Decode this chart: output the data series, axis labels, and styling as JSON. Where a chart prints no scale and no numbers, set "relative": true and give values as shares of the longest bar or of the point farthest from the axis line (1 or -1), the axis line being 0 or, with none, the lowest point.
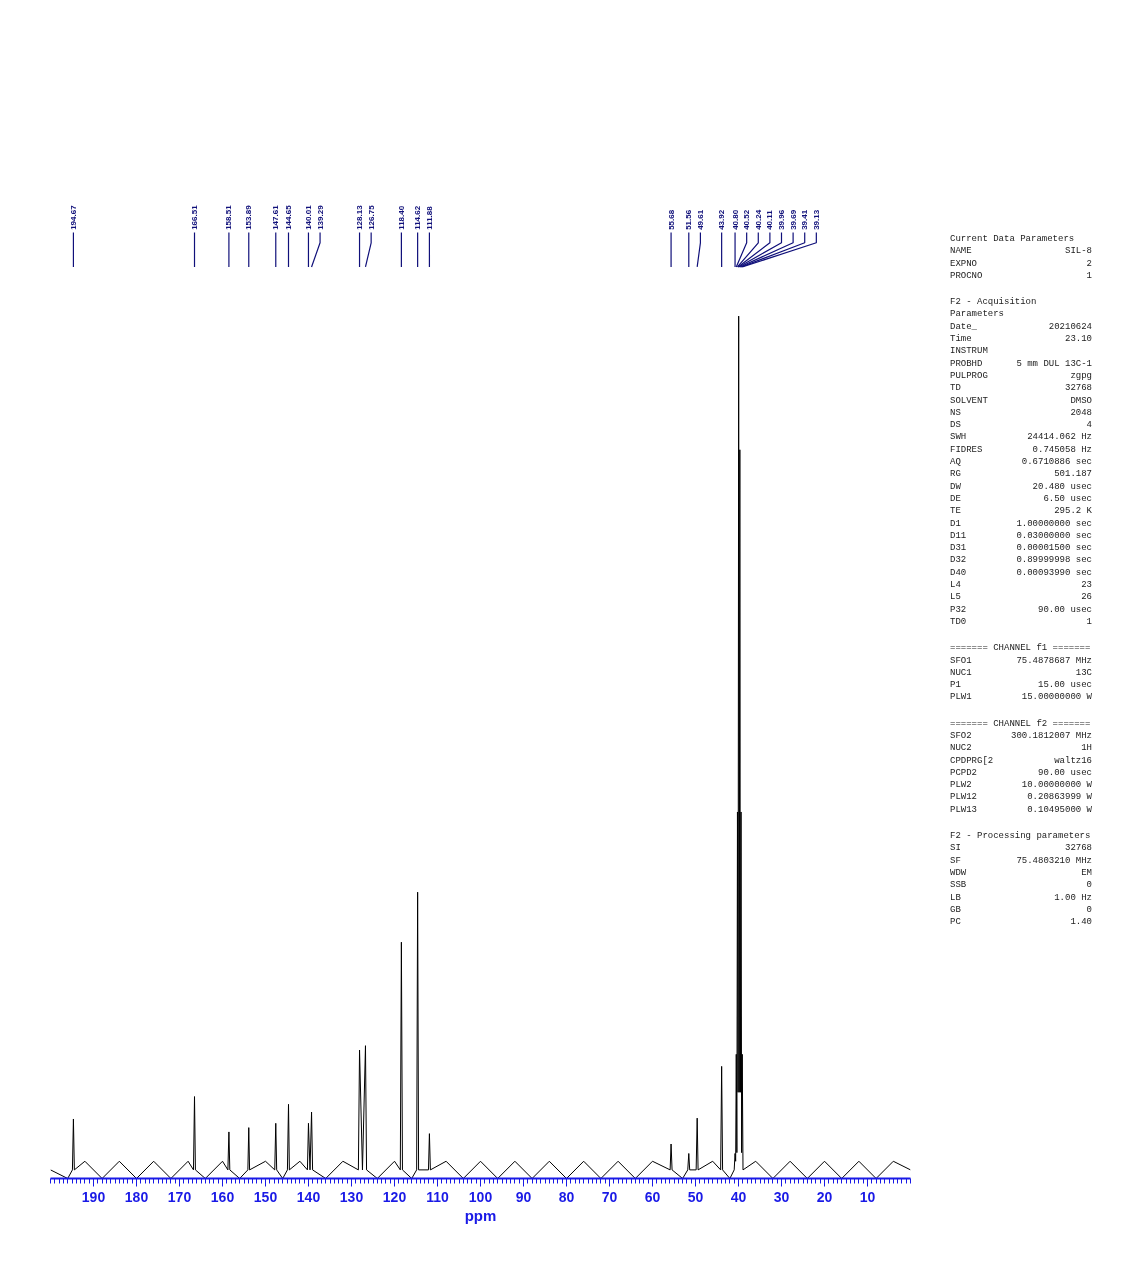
{
  "chart_data": {
    "type": "line",
    "relative": true,
    "xlabel": "ppm",
    "xlim": [
      200,
      0
    ],
    "xticks": [
      190,
      180,
      170,
      160,
      150,
      140,
      130,
      120,
      110,
      100,
      90,
      80,
      70,
      60,
      50,
      40,
      30,
      20,
      10
    ],
    "grid": false,
    "marker": "none",
    "line_style": "solid",
    "tick_labels": "x",
    "series": [
      {
        "color": "#000000",
        "x": [
          200,
          196,
          194.9,
          194.67,
          194.45,
          192,
          188,
          184,
          180,
          176,
          172,
          168,
          166.75,
          166.51,
          166.3,
          164,
          160,
          158.75,
          158.51,
          158.3,
          156,
          154.1,
          153.89,
          153.7,
          150,
          147.85,
          147.61,
          147.4,
          146,
          144.9,
          144.65,
          144.45,
          142,
          140.25,
          140.01,
          139.65,
          139.29,
          139.05,
          136,
          132,
          128.4,
          128.13,
          127.45,
          126.75,
          126.5,
          124,
          120,
          118.65,
          118.4,
          118.15,
          116,
          114.85,
          114.62,
          114.4,
          112.1,
          111.88,
          111.65,
          108,
          104,
          100,
          96,
          92,
          88,
          84,
          80,
          76,
          72,
          68,
          64,
          60,
          55.9,
          55.68,
          55.45,
          53,
          51.8,
          51.56,
          51.35,
          49.85,
          49.61,
          49.4,
          46,
          44.15,
          43.92,
          43.7,
          42,
          41.0,
          40.8,
          40.66,
          40.52,
          40.38,
          40.24,
          40.1,
          39.96,
          39.83,
          39.69,
          39.55,
          39.41,
          39.27,
          39.13,
          38.95,
          36,
          32,
          28,
          24,
          20,
          16,
          12,
          8,
          4,
          0
        ],
        "values": [
          0.01,
          0,
          0.01,
          0.069,
          0.01,
          0.02,
          0,
          0.02,
          0,
          0.02,
          0,
          0.02,
          0.01,
          0.095,
          0.01,
          0,
          0.02,
          0.01,
          0.054,
          0.01,
          0,
          0.01,
          0.059,
          0.01,
          0.02,
          0.01,
          0.064,
          0.01,
          0,
          0.01,
          0.086,
          0.01,
          0.02,
          0.01,
          0.064,
          0.01,
          0.077,
          0.01,
          0,
          0.02,
          0.01,
          0.149,
          0.01,
          0.154,
          0.01,
          0,
          0.02,
          0.01,
          0.274,
          0.01,
          0,
          0.01,
          0.332,
          0.01,
          0.01,
          0.052,
          0.01,
          0.02,
          0,
          0.02,
          0,
          0.02,
          0,
          0.02,
          0,
          0.02,
          0,
          0.02,
          0,
          0.02,
          0.01,
          0.04,
          0.01,
          0,
          0.01,
          0.029,
          0.01,
          0.01,
          0.07,
          0.01,
          0.02,
          0.01,
          0.13,
          0.01,
          0,
          0.01,
          0.029,
          0.02,
          0.144,
          0.03,
          0.425,
          0.1,
          1.0,
          0.1,
          0.845,
          0.1,
          0.425,
          0.03,
          0.144,
          0.01,
          0.02,
          0,
          0.02,
          0,
          0.02,
          0,
          0.02,
          0,
          0.02,
          0.01
        ]
      }
    ],
    "annotations": [
      {
        "text": "194.67",
        "x": 194.67
      },
      {
        "text": "166.51",
        "x": 166.51
      },
      {
        "text": "158.51",
        "x": 158.51
      },
      {
        "text": "153.89",
        "x": 153.89
      },
      {
        "text": "147.61",
        "x": 147.61
      },
      {
        "text": "144.65",
        "x": 144.65
      },
      {
        "text": "140.01",
        "x": 140.01
      },
      {
        "text": "139.29",
        "x": 139.29
      },
      {
        "text": "128.13",
        "x": 128.13
      },
      {
        "text": "126.75",
        "x": 126.75
      },
      {
        "text": "118.40",
        "x": 118.4
      },
      {
        "text": "114.62",
        "x": 114.62
      },
      {
        "text": "111.88",
        "x": 111.88
      },
      {
        "text": "55.68",
        "x": 55.68
      },
      {
        "text": "51.56",
        "x": 51.56
      },
      {
        "text": "49.61",
        "x": 49.61
      },
      {
        "text": "43.92",
        "x": 43.92
      },
      {
        "text": "40.80",
        "x": 40.8
      },
      {
        "text": "40.52",
        "x": 40.52
      },
      {
        "text": "40.24",
        "x": 40.24
      },
      {
        "text": "40.11",
        "x": 40.11
      },
      {
        "text": "39.96",
        "x": 39.96
      },
      {
        "text": "39.69",
        "x": 39.69
      },
      {
        "text": "39.41",
        "x": 39.41
      },
      {
        "text": "39.13",
        "x": 39.13
      },
      "Current Data Parameters",
      "NAME  SIL-8",
      "EXPNO  2",
      "PROCNO  1",
      "F2 - Acquisition Parameters",
      "Date_  20210624",
      "Time  23.10",
      "INSTRUM",
      "PROBHD  5 mm DUL 13C-1",
      "PULPROG  zgpg",
      "TD  32768",
      "SOLVENT  DMSO",
      "NS  2048",
      "DS  4",
      "SWH  24414.062 Hz",
      "FIDRES  0.745058 Hz",
      "AQ  0.6710886 sec",
      "RG  501.187",
      "DW  20.480 usec",
      "DE  6.50 usec",
      "TE  295.2 K",
      "D1  1.00000000 sec",
      "D11  0.03000000 sec",
      "D31  0.00001500 sec",
      "D32  0.89999998 sec",
      "D40  0.00093990 sec",
      "L4  23",
      "L5  26",
      "P32  90.00 usec",
      "TD0  1",
      "======= CHANNEL f1 =======",
      "SFO1  75.4878687 MHz",
      "NUC1  13C",
      "P1  15.00 usec",
      "PLW1  15.00000000 W",
      "======= CHANNEL f2 =======",
      "SFO2  300.1812007 MHz",
      "NUC2  1H",
      "CPDPRG[2  waltz16",
      "PCPD2  90.00 usec",
      "PLW2  10.00000000 W",
      "PLW12  0.20863999 W",
      "PLW13  0.10495000 W",
      "F2 - Processing parameters",
      "SI  32768",
      "SF  75.4803210 MHz",
      "WDW  EM",
      "SSB  0",
      "LB  1.00 Hz",
      "GB  0",
      "PC  1.40"
    ]
  }
}
